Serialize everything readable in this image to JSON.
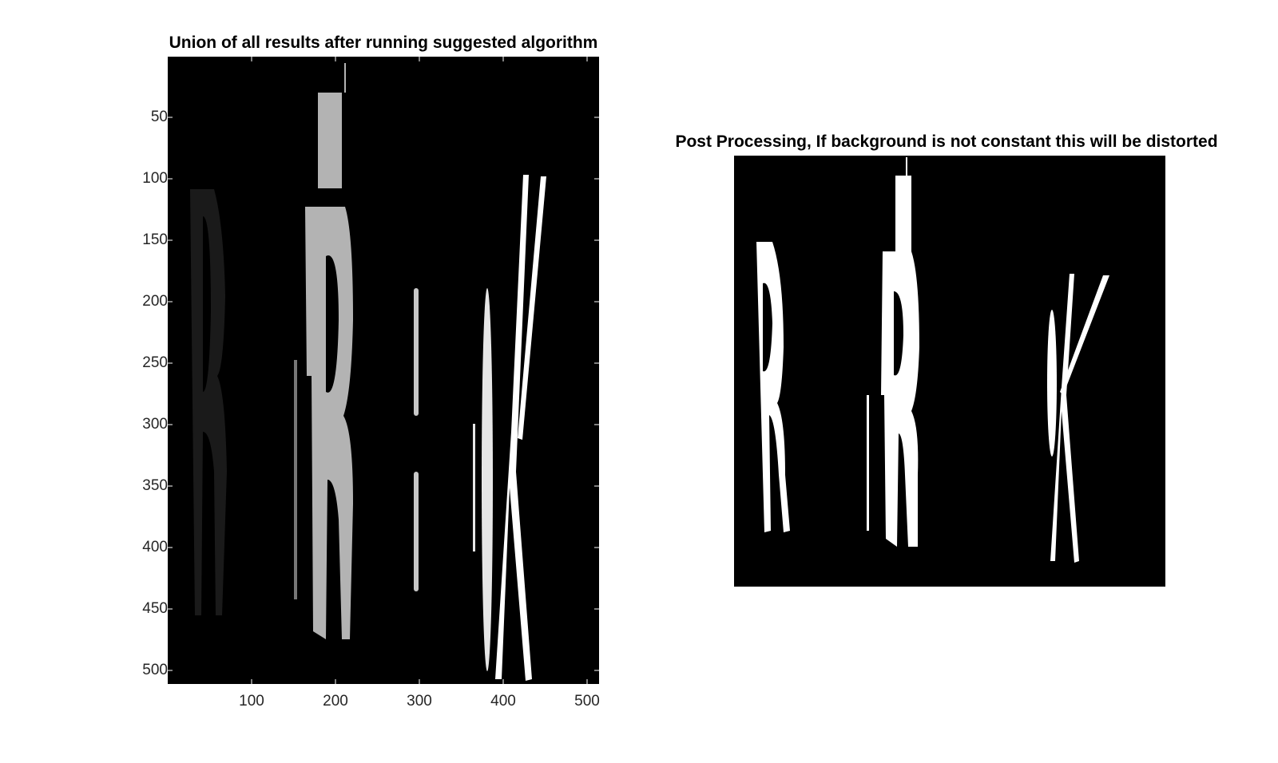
{
  "left_panel": {
    "title": "Union of all results after running suggested algorithm",
    "y_ticks": [
      "50",
      "100",
      "150",
      "200",
      "250",
      "300",
      "350",
      "400",
      "450",
      "500"
    ],
    "x_ticks": [
      "100",
      "200",
      "300",
      "400",
      "500"
    ],
    "colors": {
      "background": "#000000",
      "letter_1": "#1a1a1a",
      "letter_2": "#b3b3b3",
      "letter_3": "#c8c8c8",
      "letter_4": "#ffffff"
    }
  },
  "right_panel": {
    "title": "Post Processing, If background is not constant this will be distorted",
    "colors": {
      "background": "#000000",
      "foreground": "#ffffff"
    }
  }
}
